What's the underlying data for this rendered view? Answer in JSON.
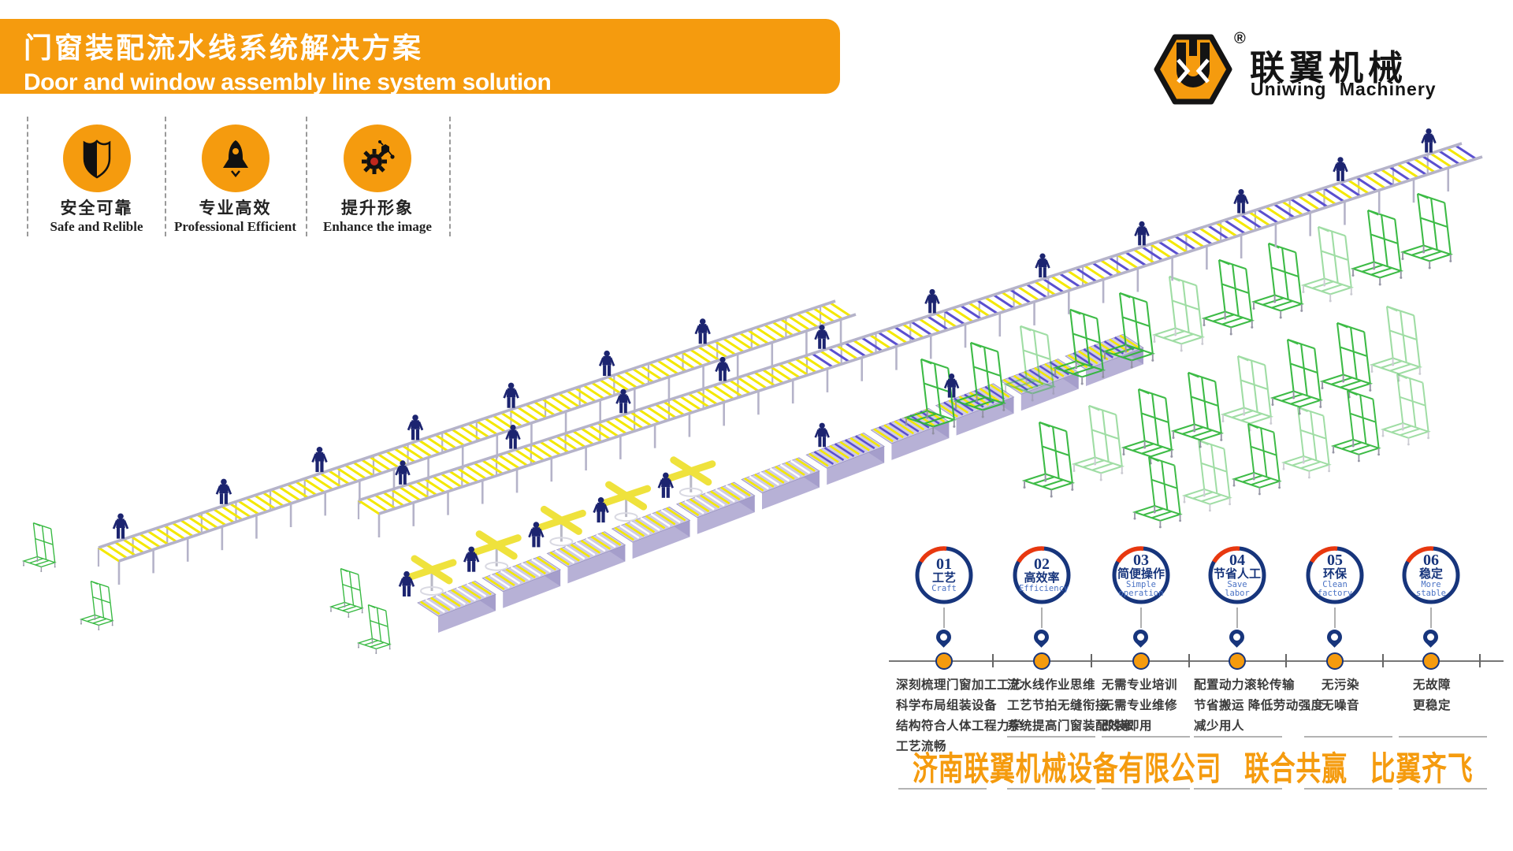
{
  "banner": {
    "title_zh": "门窗装配流水线系统解决方案",
    "title_en": "Door and window assembly line system solution"
  },
  "logo": {
    "monogram": "U",
    "registered": "®",
    "brand_zh": "联翼机械",
    "brand_en": "Uniwing Machinery"
  },
  "badges": [
    {
      "icon": "shield-icon",
      "label_zh": "安全可靠",
      "label_en": "Safe and Relible"
    },
    {
      "icon": "rocket-icon",
      "label_zh": "专业高效",
      "label_en": "Professional Efficient"
    },
    {
      "icon": "molecule-gear-icon",
      "label_zh": "提升形象",
      "label_en": "Enhance the image"
    }
  ],
  "features": [
    {
      "num": "01",
      "label_zh": "工艺",
      "label_en": "Craft",
      "desc": [
        "深刻梳理门窗加工工艺",
        "科学布局组装设备",
        "结构符合人体工程力学",
        "工艺流畅"
      ]
    },
    {
      "num": "02",
      "label_zh": "高效率",
      "label_en": "Efficiency",
      "desc": [
        "流水线作业思维",
        "工艺节拍无缝衔接",
        "系统提高门窗装配效率"
      ]
    },
    {
      "num": "03",
      "label_zh": "简便操作",
      "label_en": "Simple operation",
      "desc": [
        "无需专业培训",
        "无需专业维修",
        "即装即用"
      ]
    },
    {
      "num": "04",
      "label_zh": "节省人工",
      "label_en": "Save labor",
      "desc": [
        "配置动力滚轮传输",
        "节省搬运 降低劳动强度",
        "减少用人"
      ]
    },
    {
      "num": "05",
      "label_zh": "环保",
      "label_en": "Clean factory",
      "desc": [
        "无污染",
        "无噪音"
      ]
    },
    {
      "num": "06",
      "label_zh": "稳定",
      "label_en": "More stable",
      "desc": [
        "无故障",
        "更稳定"
      ]
    }
  ],
  "footer": {
    "company": "济南联翼机械设备有限公司",
    "slogan_1": "联合共赢",
    "slogan_2": "比翼齐飞"
  },
  "colors": {
    "accent_orange": "#F59B0E",
    "navy": "#17357C",
    "arc_red": "#E8380F",
    "rack_green": "#2DB637",
    "conveyor_yellow": "#F4E800",
    "conveyor_purple": "#5A4FD0",
    "conveyor_rail": "#B5B3C9",
    "bench_lavender": "#CFCBE4",
    "bench_front": "#B7B1D6",
    "worker_navy": "#1C2470",
    "timeline_gray": "#777777",
    "english_blue": "#4A72C4"
  }
}
